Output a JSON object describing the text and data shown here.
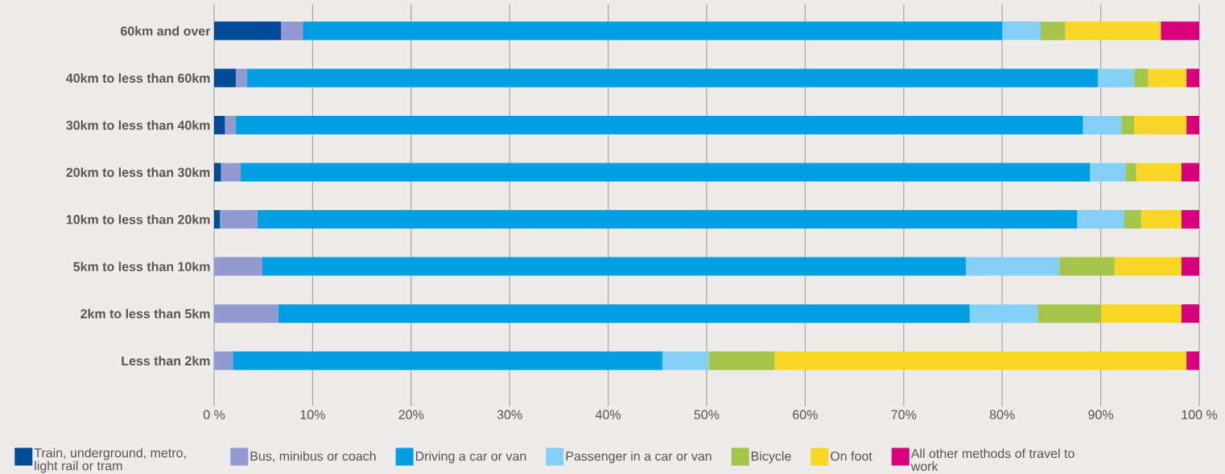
{
  "chart_data": {
    "type": "bar",
    "orientation": "horizontal",
    "stacked": true,
    "categories": [
      "60km and over",
      "40km to less than 60km",
      "30km to less than 40km",
      "20km to less than 30km",
      "10km to less than 20km",
      "5km to less than 10km",
      "2km to less than 5km",
      "Less than 2km"
    ],
    "series": [
      {
        "name": "Train, underground, metro, light rail or tram",
        "color": "#004c99",
        "values": [
          6.8,
          2.2,
          1.1,
          0.7,
          0.6,
          0,
          0,
          0
        ]
      },
      {
        "name": "Bus, minibus or coach",
        "color": "#929acf",
        "values": [
          2.2,
          1.1,
          1.1,
          2.0,
          3.8,
          4.9,
          6.5,
          1.9
        ]
      },
      {
        "name": "Driving a car or van",
        "color": "#009fe3",
        "values": [
          71.0,
          86.4,
          86.0,
          86.2,
          83.2,
          71.4,
          70.2,
          43.6
        ]
      },
      {
        "name": "Passenger in a car or van",
        "color": "#84d0f5",
        "values": [
          3.9,
          3.7,
          3.9,
          3.6,
          4.8,
          9.5,
          6.9,
          4.7
        ]
      },
      {
        "name": "Bicycle",
        "color": "#a4c54a",
        "values": [
          2.5,
          1.4,
          1.3,
          1.1,
          1.7,
          5.6,
          6.4,
          6.7
        ]
      },
      {
        "name": "On foot",
        "color": "#f9d724",
        "values": [
          9.7,
          3.9,
          5.3,
          4.6,
          4.1,
          6.8,
          8.2,
          41.8
        ]
      },
      {
        "name": "All other methods of travel to work",
        "color": "#d9007e",
        "values": [
          3.9,
          1.3,
          1.3,
          1.8,
          1.8,
          1.8,
          1.8,
          1.3
        ]
      }
    ],
    "xlim": [
      0,
      100
    ],
    "xticks": [
      {
        "value": 0,
        "label": "0 %"
      },
      {
        "value": 10,
        "label": "10%"
      },
      {
        "value": 20,
        "label": "20%"
      },
      {
        "value": 30,
        "label": "30%"
      },
      {
        "value": 40,
        "label": "40%"
      },
      {
        "value": 50,
        "label": "50%"
      },
      {
        "value": 60,
        "label": "60%"
      },
      {
        "value": 70,
        "label": "70%"
      },
      {
        "value": 80,
        "label": "80%"
      },
      {
        "value": 90,
        "label": "90%"
      },
      {
        "value": 100,
        "label": "100 %"
      }
    ],
    "grid": "x",
    "legend": "bottom"
  }
}
